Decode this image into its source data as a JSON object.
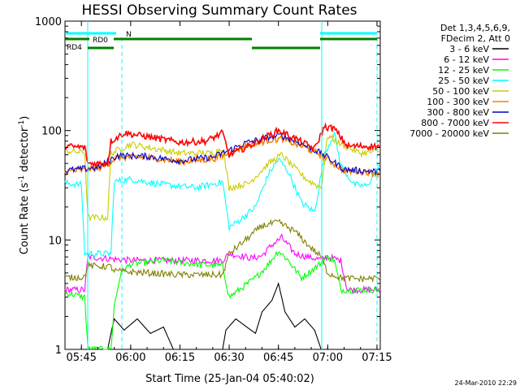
{
  "chart_data": {
    "type": "line",
    "title": "HESSI Observing Summary Count Rates",
    "xlabel": "Start Time (25-Jan-04 05:40:02)",
    "ylabel_main": "Count Rate (s",
    "ylabel_sup1": "-1",
    "ylabel_mid": " detector",
    "ylabel_sup2": "-1",
    "ylabel_end": ")",
    "y_scale": "log",
    "ylim": [
      1,
      1000
    ],
    "xlim_minutes": [
      0,
      96
    ],
    "x_ticks": [
      {
        "label": "05:45",
        "minutes": 5
      },
      {
        "label": "06:00",
        "minutes": 20
      },
      {
        "label": "06:15",
        "minutes": 35
      },
      {
        "label": "06:30",
        "minutes": 50
      },
      {
        "label": "06:45",
        "minutes": 65
      },
      {
        "label": "07:00",
        "minutes": 80
      },
      {
        "label": "07:15",
        "minutes": 95
      }
    ],
    "y_ticks": [
      {
        "label": "1",
        "value": 1
      },
      {
        "label": "10",
        "value": 10
      },
      {
        "label": "100",
        "value": 100
      },
      {
        "label": "1000",
        "value": 1000
      }
    ],
    "legend_header": [
      "Det 1,3,4,5,6,9,",
      "FDecim 2, Att 0"
    ],
    "series": [
      {
        "name": "3 - 6 keV",
        "color": "#000000",
        "points": [
          [
            0,
            1
          ],
          [
            13,
            1
          ],
          [
            14,
            1.4
          ],
          [
            15,
            1.9
          ],
          [
            18,
            1.5
          ],
          [
            22,
            1.9
          ],
          [
            26,
            1.4
          ],
          [
            30,
            1.6
          ],
          [
            33,
            1
          ],
          [
            48,
            1
          ],
          [
            49,
            1.5
          ],
          [
            52,
            1.9
          ],
          [
            58,
            1.4
          ],
          [
            60,
            2.2
          ],
          [
            63,
            2.8
          ],
          [
            65,
            4
          ],
          [
            67,
            2.2
          ],
          [
            70,
            1.6
          ],
          [
            73,
            1.9
          ],
          [
            76,
            1.5
          ],
          [
            78,
            1
          ]
        ]
      },
      {
        "name": "6 - 12 keV",
        "color": "#ff00ff",
        "points": [
          [
            0,
            3.5
          ],
          [
            6,
            3.5
          ],
          [
            7,
            7
          ],
          [
            20,
            6.5
          ],
          [
            35,
            6.5
          ],
          [
            48,
            6.5
          ],
          [
            50,
            7.5
          ],
          [
            57,
            6.8
          ],
          [
            60,
            7.2
          ],
          [
            63,
            9
          ],
          [
            66,
            10.5
          ],
          [
            70,
            7.5
          ],
          [
            74,
            7
          ],
          [
            78,
            6.6
          ],
          [
            80,
            7
          ],
          [
            84,
            6.5
          ],
          [
            86,
            3.5
          ],
          [
            96,
            3.5
          ]
        ]
      },
      {
        "name": "12 - 25 keV",
        "color": "#00ff00",
        "points": [
          [
            0,
            3.3
          ],
          [
            6,
            3
          ],
          [
            7,
            1
          ],
          [
            14,
            1
          ],
          [
            15,
            2.5
          ],
          [
            17,
            5
          ],
          [
            20,
            6
          ],
          [
            30,
            6.5
          ],
          [
            40,
            6
          ],
          [
            48,
            5.8
          ],
          [
            50,
            3
          ],
          [
            58,
            4.5
          ],
          [
            62,
            6
          ],
          [
            65,
            8
          ],
          [
            68,
            6.5
          ],
          [
            72,
            4.5
          ],
          [
            76,
            5.5
          ],
          [
            80,
            7
          ],
          [
            82,
            6.5
          ],
          [
            84,
            3.5
          ],
          [
            90,
            3.5
          ],
          [
            96,
            3.5
          ]
        ]
      },
      {
        "name": "25 - 50 keV",
        "color": "#00ffff",
        "points": [
          [
            0,
            33
          ],
          [
            5,
            32
          ],
          [
            6,
            7.5
          ],
          [
            14,
            7.5
          ],
          [
            15,
            34
          ],
          [
            20,
            36
          ],
          [
            30,
            32
          ],
          [
            40,
            30
          ],
          [
            48,
            34
          ],
          [
            50,
            13
          ],
          [
            53,
            15
          ],
          [
            58,
            20
          ],
          [
            62,
            40
          ],
          [
            65,
            55
          ],
          [
            68,
            42
          ],
          [
            72,
            22
          ],
          [
            76,
            18
          ],
          [
            79,
            60
          ],
          [
            82,
            95
          ],
          [
            84,
            48
          ],
          [
            88,
            32
          ],
          [
            92,
            31
          ],
          [
            96,
            50
          ]
        ]
      },
      {
        "name": "50 - 100 keV",
        "color": "#cccc00",
        "points": [
          [
            0,
            65
          ],
          [
            6,
            63
          ],
          [
            7,
            16
          ],
          [
            13,
            16
          ],
          [
            14,
            62
          ],
          [
            20,
            75
          ],
          [
            35,
            62
          ],
          [
            45,
            62
          ],
          [
            48,
            70
          ],
          [
            50,
            30
          ],
          [
            56,
            33
          ],
          [
            62,
            50
          ],
          [
            66,
            60
          ],
          [
            70,
            45
          ],
          [
            74,
            35
          ],
          [
            78,
            30
          ],
          [
            80,
            90
          ],
          [
            84,
            75
          ],
          [
            90,
            62
          ],
          [
            96,
            65
          ]
        ]
      },
      {
        "name": "100 - 300 keV",
        "color": "#ff8000",
        "points": [
          [
            0,
            42
          ],
          [
            10,
            45
          ],
          [
            13,
            50
          ],
          [
            16,
            57
          ],
          [
            25,
            57
          ],
          [
            35,
            52
          ],
          [
            45,
            55
          ],
          [
            50,
            62
          ],
          [
            55,
            72
          ],
          [
            62,
            82
          ],
          [
            66,
            84
          ],
          [
            72,
            72
          ],
          [
            78,
            60
          ],
          [
            81,
            52
          ],
          [
            85,
            43
          ],
          [
            96,
            41
          ]
        ]
      },
      {
        "name": "300 - 800 keV",
        "color": "#0000cc",
        "points": [
          [
            0,
            43
          ],
          [
            10,
            46
          ],
          [
            13,
            52
          ],
          [
            16,
            59
          ],
          [
            25,
            58
          ],
          [
            35,
            53
          ],
          [
            45,
            57
          ],
          [
            50,
            66
          ],
          [
            55,
            77
          ],
          [
            62,
            87
          ],
          [
            66,
            90
          ],
          [
            72,
            76
          ],
          [
            78,
            62
          ],
          [
            81,
            54
          ],
          [
            85,
            44
          ],
          [
            96,
            42
          ]
        ]
      },
      {
        "name": "800 - 7000 keV",
        "color": "#ff0000",
        "points": [
          [
            0,
            72
          ],
          [
            6,
            70
          ],
          [
            7,
            50
          ],
          [
            13,
            50
          ],
          [
            14,
            80
          ],
          [
            18,
            95
          ],
          [
            25,
            88
          ],
          [
            35,
            78
          ],
          [
            43,
            80
          ],
          [
            48,
            95
          ],
          [
            50,
            60
          ],
          [
            56,
            72
          ],
          [
            62,
            90
          ],
          [
            65,
            100
          ],
          [
            70,
            85
          ],
          [
            76,
            68
          ],
          [
            79,
            108
          ],
          [
            82,
            104
          ],
          [
            86,
            72
          ],
          [
            96,
            72
          ]
        ]
      },
      {
        "name": "7000 - 20000 keV",
        "color": "#808000",
        "points": [
          [
            0,
            4.5
          ],
          [
            6,
            4.6
          ],
          [
            7,
            5.8
          ],
          [
            14,
            5.7
          ],
          [
            15,
            5.2
          ],
          [
            25,
            5
          ],
          [
            35,
            4.8
          ],
          [
            48,
            4.8
          ],
          [
            50,
            7.5
          ],
          [
            55,
            10
          ],
          [
            60,
            13.5
          ],
          [
            65,
            14.5
          ],
          [
            70,
            12
          ],
          [
            74,
            9
          ],
          [
            78,
            7
          ],
          [
            80,
            5
          ],
          [
            84,
            4.5
          ],
          [
            90,
            4.4
          ],
          [
            96,
            4.5
          ]
        ]
      }
    ],
    "rd_labels": [
      {
        "text": "RD0",
        "color": "#008000"
      },
      {
        "text": "RD4",
        "color": "#008000"
      }
    ],
    "n_label": {
      "text": "N",
      "color": "#00ffff"
    },
    "footer": "24-Mar-2010 22:29"
  }
}
